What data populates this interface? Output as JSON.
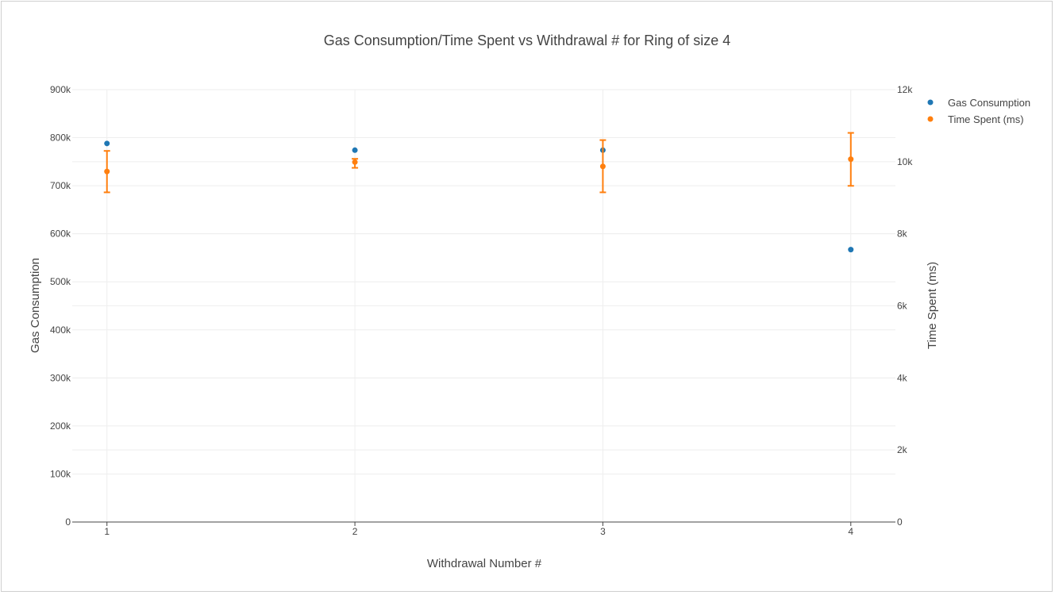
{
  "chart_data": {
    "type": "scatter",
    "title": "Gas Consumption/Time Spent vs Withdrawal # for Ring of size 4",
    "xlabel": "Withdrawal Number #",
    "ylabel": "Gas Consumption",
    "y2label": "Time Spent (ms)",
    "x": [
      1,
      2,
      3,
      4
    ],
    "x_ticks": [
      "1",
      "2",
      "3",
      "4"
    ],
    "xlim": [
      0.86,
      4.18
    ],
    "ylim": [
      0,
      900000
    ],
    "y2lim": [
      0,
      12000
    ],
    "y_ticks": [
      {
        "value": 0,
        "label": "0"
      },
      {
        "value": 100000,
        "label": "100k"
      },
      {
        "value": 200000,
        "label": "200k"
      },
      {
        "value": 300000,
        "label": "300k"
      },
      {
        "value": 400000,
        "label": "400k"
      },
      {
        "value": 500000,
        "label": "500k"
      },
      {
        "value": 600000,
        "label": "600k"
      },
      {
        "value": 700000,
        "label": "700k"
      },
      {
        "value": 800000,
        "label": "800k"
      },
      {
        "value": 900000,
        "label": "900k"
      }
    ],
    "y2_ticks": [
      {
        "value": 0,
        "label": "0"
      },
      {
        "value": 2000,
        "label": "2k"
      },
      {
        "value": 4000,
        "label": "4k"
      },
      {
        "value": 6000,
        "label": "6k"
      },
      {
        "value": 8000,
        "label": "8k"
      },
      {
        "value": 10000,
        "label": "10k"
      },
      {
        "value": 12000,
        "label": "12k"
      }
    ],
    "grid": true,
    "legend_position": "top-right",
    "series": [
      {
        "name": "Gas Consumption",
        "axis": "y",
        "color": "#1f77b4",
        "values": [
          788000,
          774000,
          774000,
          567000
        ]
      },
      {
        "name": "Time Spent (ms)",
        "axis": "y2",
        "color": "#ff7f0e",
        "values": [
          9730,
          9990,
          9870,
          10070
        ],
        "error_low": [
          9150,
          9830,
          9150,
          9330
        ],
        "error_high": [
          10300,
          10080,
          10600,
          10800
        ]
      }
    ]
  }
}
